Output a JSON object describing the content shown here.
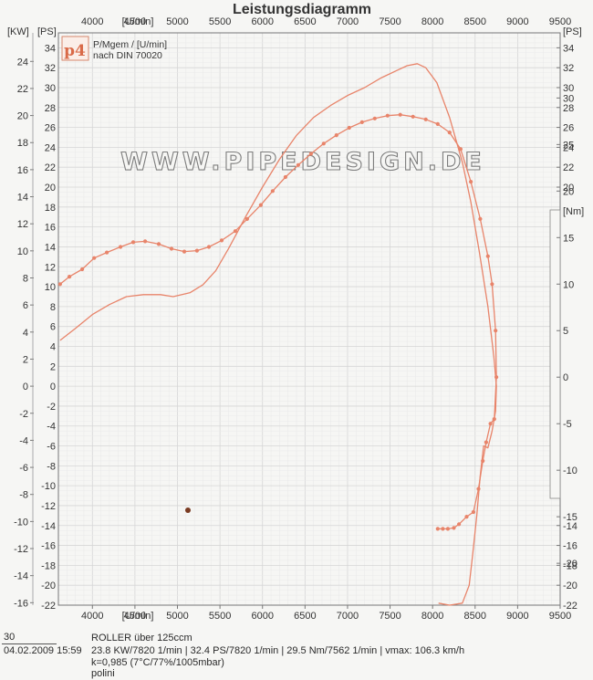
{
  "chart_data": {
    "type": "line",
    "title": "Leistungsdiagramm",
    "legend_title": "P/Mgem / [U/min]",
    "legend_subtitle": "nach DIN 70020",
    "logo_text": "p4",
    "watermark": "WWW.PIPEDESIGN.DE",
    "x_axis": {
      "label": "[U/min]",
      "range": [
        3600,
        9500
      ],
      "ticks": [
        4000,
        4500,
        5000,
        5500,
        6000,
        6500,
        7000,
        7500,
        8000,
        8500,
        9000,
        9500
      ],
      "tick_labels": [
        "4000",
        "4500",
        "5000",
        "5500",
        "6000",
        "6500",
        "7000",
        "7500",
        "8000",
        "8500",
        "9000",
        "9500"
      ]
    },
    "axes": {
      "kw_label": "[KW]",
      "ps_label": "[PS]",
      "nm_label": "[Nm]",
      "kw_ticks": [
        24,
        22,
        20,
        18,
        16,
        14,
        12,
        10,
        8,
        6,
        4,
        2,
        0,
        -2,
        -4,
        -6,
        -8,
        -10,
        -12,
        -14,
        -16
      ],
      "ps_ticks": [
        34,
        32,
        30,
        28,
        26,
        24,
        22,
        20,
        18,
        16,
        14,
        12,
        10,
        8,
        6,
        4,
        2,
        0,
        -2,
        -4,
        -6,
        -8,
        -10,
        -12,
        -14,
        -16,
        -18,
        -20,
        -22
      ],
      "ps_right_top": [
        34,
        32,
        30,
        28,
        26,
        24,
        22,
        20
      ],
      "ps_right_bottom": [
        -14,
        -16,
        -18,
        -20,
        -22
      ],
      "nm_ticks": [
        30,
        25,
        20,
        15,
        10,
        5,
        0,
        -5,
        -10,
        -15,
        -20
      ],
      "ps_range": [
        -22,
        35.5
      ],
      "nm_range": [
        -24.5,
        37
      ]
    },
    "series": [
      {
        "name": "PS",
        "unit": "PS",
        "color": "#e8846a",
        "markers": false,
        "points": [
          [
            3620,
            4.6
          ],
          [
            3800,
            5.8
          ],
          [
            4000,
            7.2
          ],
          [
            4200,
            8.2
          ],
          [
            4400,
            9.0
          ],
          [
            4600,
            9.2
          ],
          [
            4800,
            9.2
          ],
          [
            4950,
            9.0
          ],
          [
            5150,
            9.4
          ],
          [
            5300,
            10.2
          ],
          [
            5450,
            11.6
          ],
          [
            5600,
            13.8
          ],
          [
            5800,
            17.0
          ],
          [
            6000,
            20.0
          ],
          [
            6200,
            22.8
          ],
          [
            6400,
            25.2
          ],
          [
            6600,
            27.0
          ],
          [
            6800,
            28.2
          ],
          [
            7000,
            29.2
          ],
          [
            7200,
            30.0
          ],
          [
            7400,
            31.0
          ],
          [
            7600,
            31.8
          ],
          [
            7700,
            32.2
          ],
          [
            7820,
            32.4
          ],
          [
            7920,
            32.0
          ],
          [
            8050,
            30.5
          ],
          [
            8200,
            27.0
          ],
          [
            8350,
            22.5
          ],
          [
            8450,
            18.5
          ],
          [
            8550,
            13.5
          ],
          [
            8650,
            8.0
          ],
          [
            8720,
            3.0
          ],
          [
            8750,
            0.0
          ],
          [
            8740,
            -2.5
          ],
          [
            8700,
            -4.5
          ],
          [
            8650,
            -6.2
          ],
          [
            8600,
            -6.0
          ],
          [
            8560,
            -9.0
          ],
          [
            8520,
            -13.0
          ],
          [
            8470,
            -17.0
          ],
          [
            8430,
            -20.0
          ],
          [
            8350,
            -21.8
          ],
          [
            8200,
            -22.0
          ],
          [
            8070,
            -21.8
          ]
        ]
      },
      {
        "name": "Nm",
        "unit": "Nm",
        "color": "#e8846a",
        "markers": true,
        "points": [
          [
            3620,
            10.0
          ],
          [
            3730,
            10.8
          ],
          [
            3880,
            11.6
          ],
          [
            4020,
            12.8
          ],
          [
            4170,
            13.4
          ],
          [
            4330,
            14.0
          ],
          [
            4480,
            14.5
          ],
          [
            4620,
            14.6
          ],
          [
            4780,
            14.3
          ],
          [
            4930,
            13.8
          ],
          [
            5080,
            13.5
          ],
          [
            5230,
            13.6
          ],
          [
            5370,
            14.0
          ],
          [
            5520,
            14.7
          ],
          [
            5680,
            15.7
          ],
          [
            5820,
            17.0
          ],
          [
            5980,
            18.5
          ],
          [
            6120,
            20.0
          ],
          [
            6270,
            21.5
          ],
          [
            6420,
            22.8
          ],
          [
            6570,
            24.0
          ],
          [
            6720,
            25.1
          ],
          [
            6870,
            26.0
          ],
          [
            7020,
            26.8
          ],
          [
            7170,
            27.4
          ],
          [
            7320,
            27.8
          ],
          [
            7470,
            28.1
          ],
          [
            7620,
            28.2
          ],
          [
            7770,
            28.0
          ],
          [
            7920,
            27.7
          ],
          [
            8060,
            27.2
          ],
          [
            8200,
            26.3
          ],
          [
            8330,
            24.5
          ],
          [
            8450,
            21.0
          ],
          [
            8560,
            17.0
          ],
          [
            8650,
            13.0
          ],
          [
            8700,
            10.0
          ],
          [
            8740,
            5.0
          ],
          [
            8750,
            0.0
          ],
          [
            8725,
            -4.5
          ],
          [
            8680,
            -5.0
          ],
          [
            8630,
            -7.0
          ],
          [
            8590,
            -9.0
          ],
          [
            8540,
            -12.0
          ],
          [
            8480,
            -14.5
          ],
          [
            8400,
            -15.0
          ],
          [
            8310,
            -15.8
          ],
          [
            8250,
            -16.2
          ],
          [
            8180,
            -16.3
          ],
          [
            8120,
            -16.3
          ],
          [
            8060,
            -16.3
          ]
        ]
      }
    ]
  },
  "footer": {
    "run_no": "30",
    "date_time": "04.02.2009  15:59",
    "vehicle": "ROLLER über 125ccm",
    "summary": "23.8 KW/7820 1/min  |  32.4 PS/7820 1/min  |  29.5 Nm/7562 1/min | vmax: 106.3 km/h",
    "conditions": "k=0,985 (7°C/77%/1005mbar)",
    "note": "polini"
  }
}
